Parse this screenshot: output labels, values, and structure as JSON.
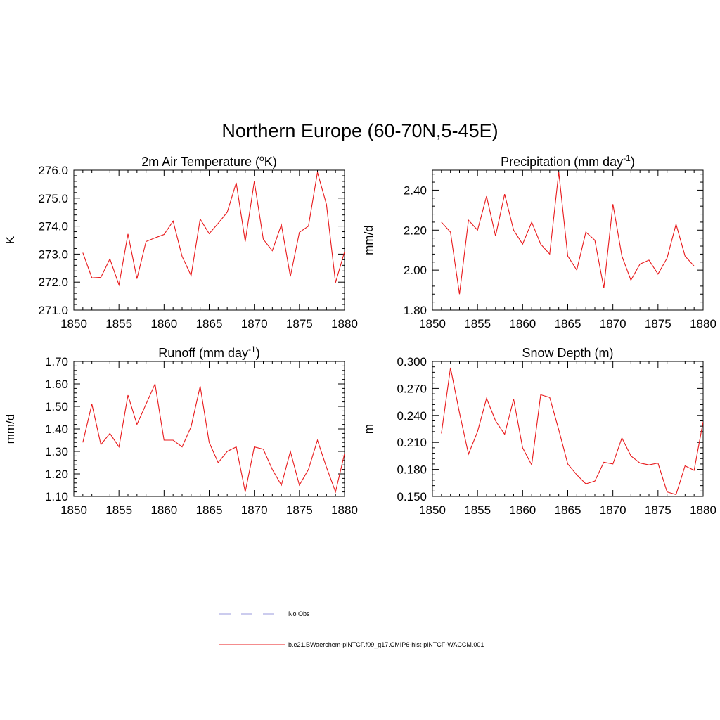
{
  "title": "Northern Europe (60-70N,5-45E)",
  "legend": {
    "entries": [
      {
        "label": "No Obs",
        "color": "#9a9ade",
        "dashed": true
      },
      {
        "label": "b.e21.BWaerchem-piNTCF.f09_g17.CMIP6-hist-piNTCF-WACCM.001",
        "color": "#e8191b",
        "dashed": false
      }
    ]
  },
  "chart_data": [
    {
      "type": "line",
      "title": "2m Air Temperature (",
      "title_sup": "o",
      "title_suffix": "K)",
      "ylabel": "K",
      "xlim": [
        1850,
        1880
      ],
      "ylim": [
        271.0,
        276.0
      ],
      "xticks": [
        1850,
        1855,
        1860,
        1865,
        1870,
        1875,
        1880
      ],
      "yticks": [
        271.0,
        272.0,
        273.0,
        274.0,
        275.0,
        276.0
      ],
      "ytick_labels": [
        "271.0",
        "272.0",
        "273.0",
        "274.0",
        "275.0",
        "276.0"
      ],
      "x": [
        1851,
        1852,
        1853,
        1854,
        1855,
        1856,
        1857,
        1858,
        1859,
        1860,
        1861,
        1862,
        1863,
        1864,
        1865,
        1866,
        1867,
        1868,
        1869,
        1870,
        1871,
        1872,
        1873,
        1874,
        1875,
        1876,
        1877,
        1878,
        1879,
        1880
      ],
      "series": [
        {
          "color": "#e8191b",
          "values": [
            273.05,
            272.15,
            272.17,
            272.83,
            271.9,
            273.72,
            272.12,
            273.45,
            273.58,
            273.7,
            274.18,
            272.92,
            272.23,
            274.25,
            273.73,
            274.1,
            274.5,
            275.55,
            273.45,
            275.6,
            273.53,
            273.12,
            274.05,
            272.2,
            273.78,
            274.0,
            275.92,
            274.78,
            271.98,
            273.08
          ]
        }
      ]
    },
    {
      "type": "line",
      "title": "Precipitation (mm day",
      "title_sup": "-1",
      "title_suffix": ")",
      "ylabel": "mm/d",
      "xlim": [
        1850,
        1880
      ],
      "ylim": [
        1.8,
        2.5
      ],
      "xticks": [
        1850,
        1855,
        1860,
        1865,
        1870,
        1875,
        1880
      ],
      "yticks": [
        1.8,
        2.0,
        2.2,
        2.4
      ],
      "ytick_labels": [
        "1.80",
        "2.00",
        "2.20",
        "2.40"
      ],
      "x": [
        1851,
        1852,
        1853,
        1854,
        1855,
        1856,
        1857,
        1858,
        1859,
        1860,
        1861,
        1862,
        1863,
        1864,
        1865,
        1866,
        1867,
        1868,
        1869,
        1870,
        1871,
        1872,
        1873,
        1874,
        1875,
        1876,
        1877,
        1878,
        1879,
        1880
      ],
      "series": [
        {
          "color": "#e8191b",
          "values": [
            2.24,
            2.19,
            1.88,
            2.25,
            2.2,
            2.37,
            2.17,
            2.38,
            2.2,
            2.13,
            2.24,
            2.13,
            2.08,
            2.49,
            2.07,
            2.0,
            2.19,
            2.15,
            1.91,
            2.33,
            2.07,
            1.95,
            2.03,
            2.05,
            1.98,
            2.06,
            2.23,
            2.07,
            2.02,
            2.02
          ]
        }
      ]
    },
    {
      "type": "line",
      "title": "Runoff (mm day",
      "title_sup": "-1",
      "title_suffix": ")",
      "ylabel": "mm/d",
      "xlim": [
        1850,
        1880
      ],
      "ylim": [
        1.1,
        1.7
      ],
      "xticks": [
        1850,
        1855,
        1860,
        1865,
        1870,
        1875,
        1880
      ],
      "yticks": [
        1.1,
        1.2,
        1.3,
        1.4,
        1.5,
        1.6,
        1.7
      ],
      "ytick_labels": [
        "1.10",
        "1.20",
        "1.30",
        "1.40",
        "1.50",
        "1.60",
        "1.70"
      ],
      "x": [
        1851,
        1852,
        1853,
        1854,
        1855,
        1856,
        1857,
        1858,
        1859,
        1860,
        1861,
        1862,
        1863,
        1864,
        1865,
        1866,
        1867,
        1868,
        1869,
        1870,
        1871,
        1872,
        1873,
        1874,
        1875,
        1876,
        1877,
        1878,
        1879,
        1880
      ],
      "series": [
        {
          "color": "#e8191b",
          "values": [
            1.34,
            1.51,
            1.33,
            1.38,
            1.32,
            1.55,
            1.42,
            1.51,
            1.6,
            1.35,
            1.35,
            1.32,
            1.41,
            1.59,
            1.34,
            1.25,
            1.3,
            1.32,
            1.12,
            1.32,
            1.31,
            1.22,
            1.15,
            1.3,
            1.15,
            1.22,
            1.35,
            1.23,
            1.12,
            1.29
          ]
        }
      ]
    },
    {
      "type": "line",
      "title": "Snow Depth (m)",
      "title_sup": "",
      "title_suffix": "",
      "ylabel": "m",
      "xlim": [
        1850,
        1880
      ],
      "ylim": [
        0.15,
        0.3
      ],
      "xticks": [
        1850,
        1855,
        1860,
        1865,
        1870,
        1875,
        1880
      ],
      "yticks": [
        0.15,
        0.18,
        0.21,
        0.24,
        0.27,
        0.3
      ],
      "ytick_labels": [
        "0.150",
        "0.180",
        "0.210",
        "0.240",
        "0.270",
        "0.300"
      ],
      "x": [
        1851,
        1852,
        1853,
        1854,
        1855,
        1856,
        1857,
        1858,
        1859,
        1860,
        1861,
        1862,
        1863,
        1864,
        1865,
        1866,
        1867,
        1868,
        1869,
        1870,
        1871,
        1872,
        1873,
        1874,
        1875,
        1876,
        1877,
        1878,
        1879,
        1880
      ],
      "series": [
        {
          "color": "#e8191b",
          "values": [
            0.22,
            0.293,
            0.243,
            0.197,
            0.222,
            0.259,
            0.234,
            0.219,
            0.258,
            0.204,
            0.185,
            0.263,
            0.26,
            0.224,
            0.186,
            0.174,
            0.164,
            0.167,
            0.188,
            0.186,
            0.215,
            0.195,
            0.187,
            0.185,
            0.187,
            0.155,
            0.152,
            0.184,
            0.179,
            0.233
          ]
        }
      ]
    }
  ]
}
